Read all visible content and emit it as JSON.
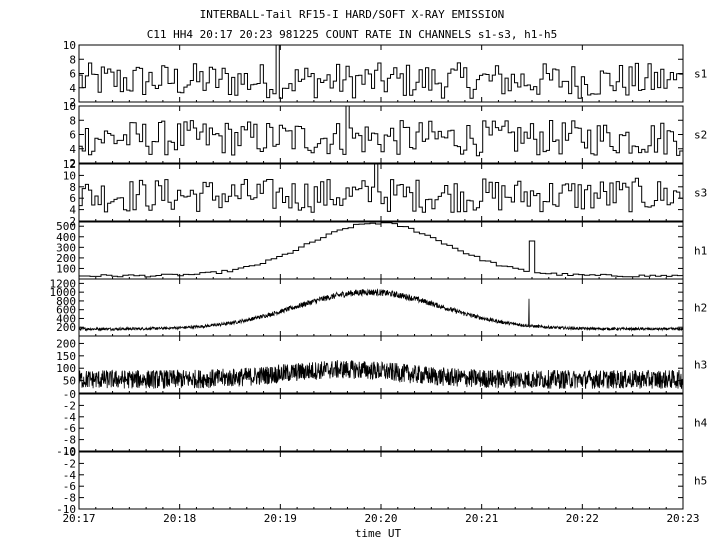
{
  "title": "INTERBALL-Tail RF15-I HARD/SOFT X-RAY EMISSION",
  "subtitle": "C11 HH4 20:17 20:23 981225  COUNT RATE IN CHANNELS s1-s3, h1-h5",
  "xlabel": "time UT",
  "x_ticks": [
    "20:17",
    "20:18",
    "20:19",
    "20:20",
    "20:21",
    "20:22",
    "20:23"
  ],
  "chart_data": [
    {
      "type": "line",
      "name": "s1",
      "ylim": [
        2,
        10
      ],
      "yticks": [
        "10",
        "8",
        "6",
        "4",
        "2"
      ],
      "ytick_values": [
        10,
        8,
        6,
        4,
        2
      ],
      "series": [
        {
          "name": "s1",
          "style": "step-noise",
          "baseline": 5,
          "noise": 2.5,
          "spike": {
            "x": 0.325,
            "value": 10
          }
        }
      ]
    },
    {
      "type": "line",
      "name": "s2",
      "ylim": [
        2,
        10
      ],
      "yticks": [
        "10",
        "8",
        "6",
        "4",
        "2"
      ],
      "ytick_values": [
        10,
        8,
        6,
        4,
        2
      ],
      "series": [
        {
          "name": "s2",
          "style": "step-noise",
          "baseline": 5.5,
          "noise": 2.5,
          "spike": {
            "x": 0.44,
            "value": 10.5
          }
        }
      ]
    },
    {
      "type": "line",
      "name": "s3",
      "ylim": [
        2,
        12
      ],
      "yticks": [
        "12",
        "10",
        "8",
        "6",
        "4",
        "2"
      ],
      "ytick_values": [
        12,
        10,
        8,
        6,
        4,
        2
      ],
      "series": [
        {
          "name": "s3",
          "style": "step-noise",
          "baseline": 6.5,
          "noise": 3,
          "spike": {
            "x": 0.49,
            "value": 12
          }
        }
      ]
    },
    {
      "type": "line",
      "name": "h1",
      "ylim": [
        0,
        540
      ],
      "yticks": [
        "500",
        "400",
        "300",
        "200",
        "100"
      ],
      "ytick_values": [
        500,
        400,
        300,
        200,
        100
      ],
      "series": [
        {
          "name": "h1",
          "style": "step-profile",
          "baseline": 30,
          "peak": 530,
          "peak_x": 0.49,
          "width": 0.16,
          "noise": 12,
          "spike": {
            "x": 0.745,
            "value": 360
          }
        }
      ]
    },
    {
      "type": "line",
      "name": "h2",
      "ylim": [
        0,
        1300
      ],
      "yticks": [
        "1200",
        "1000",
        "800",
        "600",
        "400",
        "200"
      ],
      "ytick_values": [
        1200,
        1000,
        800,
        600,
        400,
        200
      ],
      "series": [
        {
          "name": "h2",
          "style": "dense-profile",
          "baseline": 160,
          "peak": 1000,
          "peak_x": 0.48,
          "width": 0.17,
          "noise": 50,
          "spike": {
            "x": 0.745,
            "value": 850
          }
        }
      ]
    },
    {
      "type": "line",
      "name": "h3",
      "ylim": [
        0,
        230
      ],
      "yticks": [
        "200",
        "150",
        "100",
        "50"
      ],
      "ytick_values": [
        200,
        150,
        100,
        50
      ],
      "series": [
        {
          "name": "h3",
          "style": "dense-noise",
          "baseline": 55,
          "peak": 95,
          "peak_x": 0.44,
          "width": 0.14,
          "noise": 38
        }
      ]
    },
    {
      "type": "line",
      "name": "h4",
      "ylim": [
        -10,
        0
      ],
      "yticks": [
        "-0",
        "-2",
        "-4",
        "-6",
        "-8",
        "-10"
      ],
      "ytick_values": [
        0,
        -2,
        -4,
        -6,
        -8,
        -10
      ],
      "series": [
        {
          "name": "h4",
          "style": "empty"
        }
      ]
    },
    {
      "type": "line",
      "name": "h5",
      "ylim": [
        -10,
        0
      ],
      "yticks": [
        "-0",
        "-2",
        "-4",
        "-6",
        "-8",
        "-10"
      ],
      "ytick_values": [
        0,
        -2,
        -4,
        -6,
        -8,
        -10
      ],
      "series": [
        {
          "name": "h5",
          "style": "empty"
        }
      ]
    }
  ]
}
